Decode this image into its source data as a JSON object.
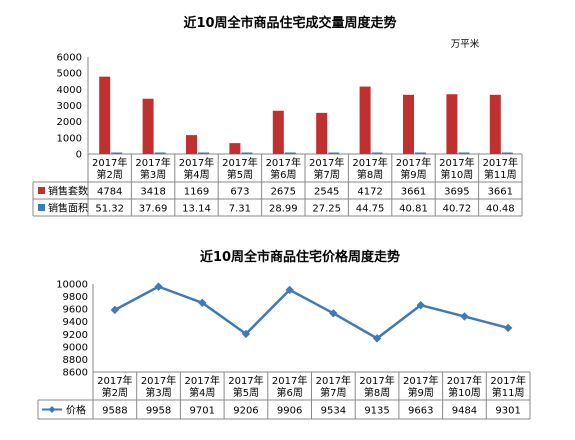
{
  "chart_data": [
    {
      "type": "bar",
      "title": "近10周全市商品住宅成交量周度走势",
      "unit": "万平米",
      "categories": [
        "2017年\n第2周",
        "2017年\n第3周",
        "2017年\n第4周",
        "2017年\n第5周",
        "2017年\n第6周",
        "2017年\n第7周",
        "2017年\n第8周",
        "2017年\n第9周",
        "2017年\n第10周",
        "2017年\n第11周"
      ],
      "ylim": [
        0,
        6000
      ],
      "yticks": [
        0,
        1000,
        2000,
        3000,
        4000,
        5000,
        6000
      ],
      "series": [
        {
          "name": "销售套数",
          "color": "#c0302e",
          "values": [
            4784,
            3418,
            1169,
            673,
            2675,
            2545,
            4172,
            3661,
            3695,
            3661
          ]
        },
        {
          "name": "销售面积",
          "color": "#3f7ab8",
          "values": [
            51.32,
            37.69,
            13.14,
            7.31,
            28.99,
            27.25,
            44.75,
            40.81,
            40.72,
            40.48
          ]
        }
      ]
    },
    {
      "type": "line",
      "title": "近10周全市商品住宅价格周度走势",
      "categories": [
        "2017年\n第2周",
        "2017年\n第3周",
        "2017年\n第4周",
        "2017年\n第5周",
        "2017年\n第6周",
        "2017年\n第7周",
        "2017年\n第8周",
        "2017年\n第9周",
        "2017年\n第10周",
        "2017年\n第11周"
      ],
      "ylim": [
        8600,
        10000
      ],
      "yticks": [
        8600,
        8800,
        9000,
        9200,
        9400,
        9600,
        9800,
        10000
      ],
      "series": [
        {
          "name": "价格",
          "color": "#3f7ab8",
          "values": [
            9588,
            9958,
            9701,
            9206,
            9906,
            9534,
            9135,
            9663,
            9484,
            9301
          ]
        }
      ]
    }
  ]
}
